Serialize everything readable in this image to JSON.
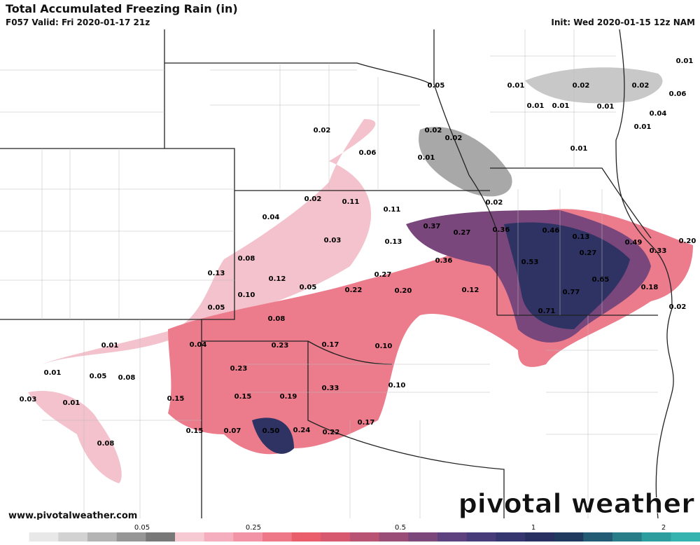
{
  "header": {
    "title": "Total Accumulated Freezing Rain (in)",
    "valid": "F057 Valid: Fri 2020-01-17 21z",
    "init": "Init: Wed 2020-01-15 12z NAM"
  },
  "map_labels": [
    "0.01",
    "0.05",
    "0.01",
    "0.02",
    "0.02",
    "0.06",
    "0.01",
    "0.01",
    "0.01",
    "0.04",
    "0.01",
    "0.02",
    "0.02",
    "0.02",
    "0.01",
    "0.06",
    "0.01",
    "0.02",
    "0.11",
    "0.02",
    "0.11",
    "0.04",
    "0.37",
    "0.27",
    "0.36",
    "0.46",
    "0.13",
    "0.03",
    "0.13",
    "0.49",
    "0.33",
    "0.20",
    "0.27",
    "0.08",
    "0.36",
    "0.53",
    "0.13",
    "0.12",
    "0.27",
    "0.65",
    "0.05",
    "0.22",
    "0.20",
    "0.12",
    "0.18",
    "0.77",
    "0.10",
    "0.05",
    "0.71",
    "0.02",
    "0.08",
    "0.04",
    "0.23",
    "0.17",
    "0.10",
    "0.01",
    "0.23",
    "0.01",
    "0.05",
    "0.08",
    "0.33",
    "0.10",
    "0.03",
    "0.01",
    "0.15",
    "0.15",
    "0.19",
    "0.17",
    "0.15",
    "0.07",
    "0.50",
    "0.24",
    "0.22",
    "0.08"
  ],
  "watermark": "pivotal weather",
  "url": "www.pivotalweather.com",
  "colorbar": {
    "colors": [
      "#ffffff",
      "#e8e8e8",
      "#d2d2d2",
      "#b4b4b4",
      "#969696",
      "#787878",
      "#f7c9d3",
      "#f5aebd",
      "#f293a6",
      "#ee7887",
      "#ea5d6a",
      "#d6596f",
      "#b85373",
      "#9a4d77",
      "#7c477b",
      "#5e417f",
      "#483b7a",
      "#353670",
      "#283062",
      "#1f3a5e",
      "#225b73",
      "#287d88",
      "#2e9d9d",
      "#35b3ae"
    ],
    "ticks": [
      0.05,
      0.25,
      0.5,
      1,
      2
    ]
  }
}
